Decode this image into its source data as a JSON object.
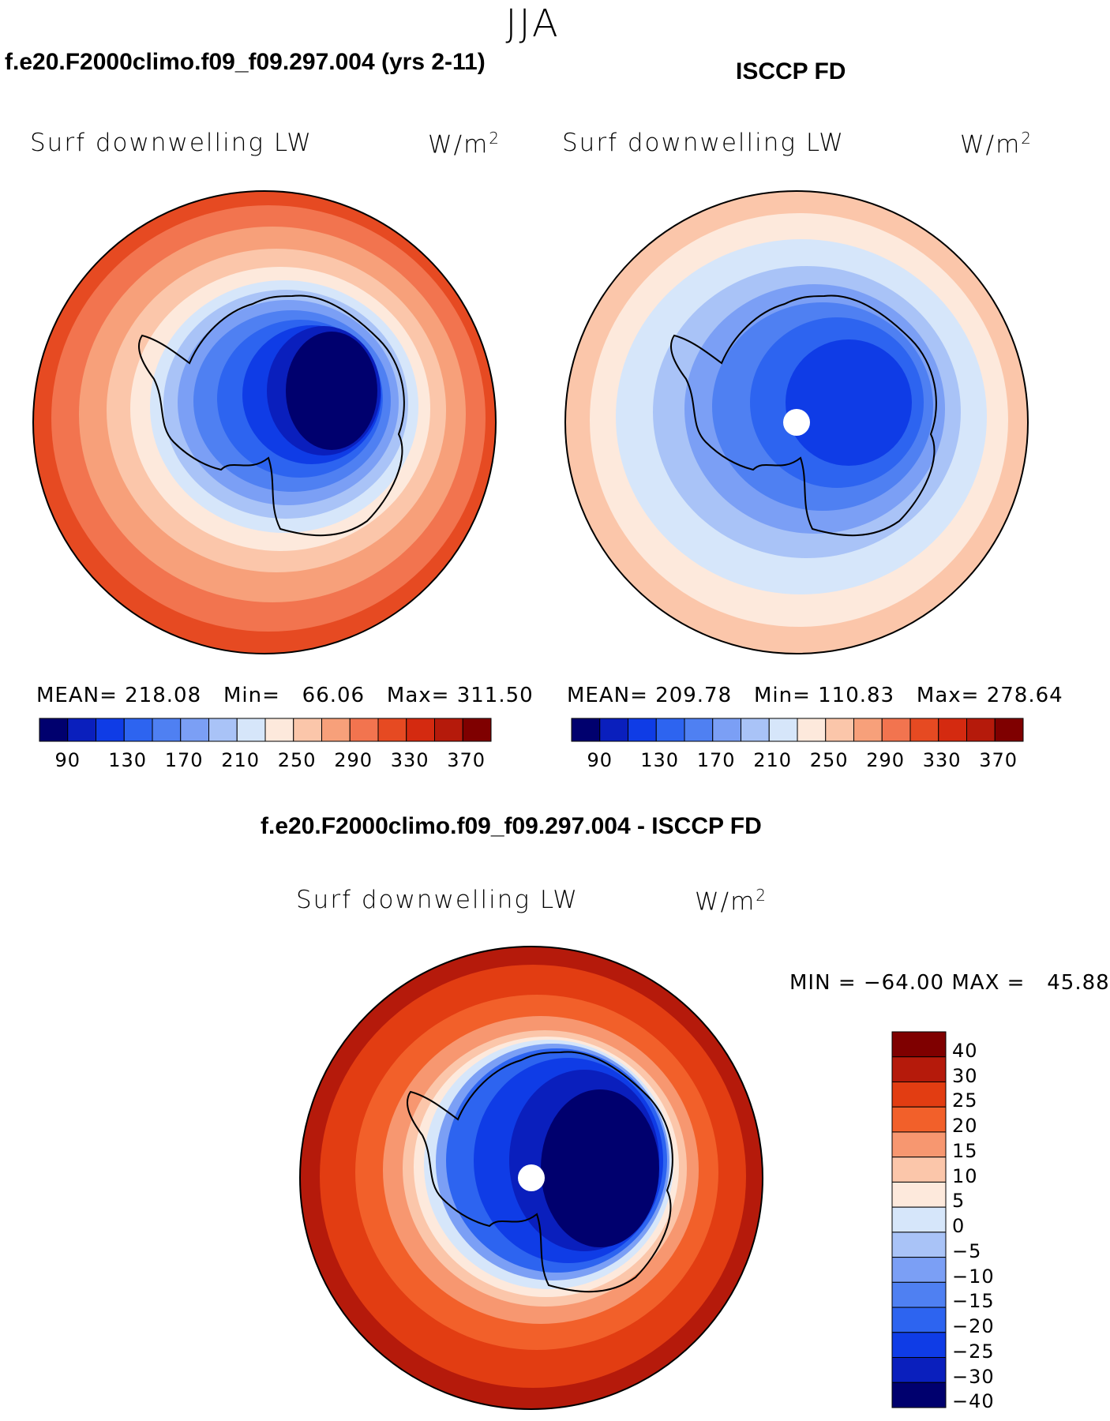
{
  "page": {
    "season": "JJA",
    "left_panel": {
      "title": "f.e20.F2000climo.f09_f09.297.004 (yrs 2-11)",
      "variable": "Surf downwelling LW",
      "units_base": "W/m",
      "units_exp": "2",
      "stats": {
        "mean_label": "MEAN=",
        "mean": "218.08",
        "min_label": "Min=",
        "min": "66.06",
        "max_label": "Max=",
        "max": "311.50"
      }
    },
    "right_panel": {
      "title": "ISCCP FD",
      "variable": "Surf downwelling LW",
      "units_base": "W/m",
      "units_exp": "2",
      "stats": {
        "mean_label": "MEAN=",
        "mean": "209.78",
        "min_label": "Min=",
        "min": "110.83",
        "max_label": "Max=",
        "max": "278.64"
      }
    },
    "diff_panel": {
      "title": "f.e20.F2000climo.f09_f09.297.004 - ISCCP FD",
      "variable": "Surf downwelling LW",
      "units_base": "W/m",
      "units_exp": "2",
      "stats": {
        "min_label": "MIN =",
        "min": "−64.00",
        "max_label": "MAX =",
        "max": "45.88"
      }
    }
  },
  "colorbars": {
    "abs_colors": [
      "#00006e",
      "#0a1fbd",
      "#0f3ce6",
      "#2d64f0",
      "#4f80f2",
      "#7b9ff5",
      "#a9c3f7",
      "#d6e6fa",
      "#fde9dc",
      "#fbc6aa",
      "#f7a07a",
      "#f2744f",
      "#e64a22",
      "#d42a10",
      "#b51a0b",
      "#7f0000"
    ],
    "abs_ticks": [
      "90",
      "130",
      "170",
      "210",
      "250",
      "290",
      "330",
      "370"
    ],
    "diff_colors": [
      "#7f0000",
      "#b51a0b",
      "#e23d12",
      "#f2602a",
      "#f79770",
      "#fbc6aa",
      "#fde9dc",
      "#d6e6fa",
      "#a9c3f7",
      "#7b9ff5",
      "#4f80f2",
      "#2d64f0",
      "#0f3ce6",
      "#0a1fbd",
      "#00006e"
    ],
    "diff_ticks": [
      "40",
      "30",
      "25",
      "20",
      "15",
      "10",
      "5",
      "0",
      "−5",
      "−10",
      "−15",
      "−20",
      "−25",
      "−30",
      "−40"
    ]
  }
}
